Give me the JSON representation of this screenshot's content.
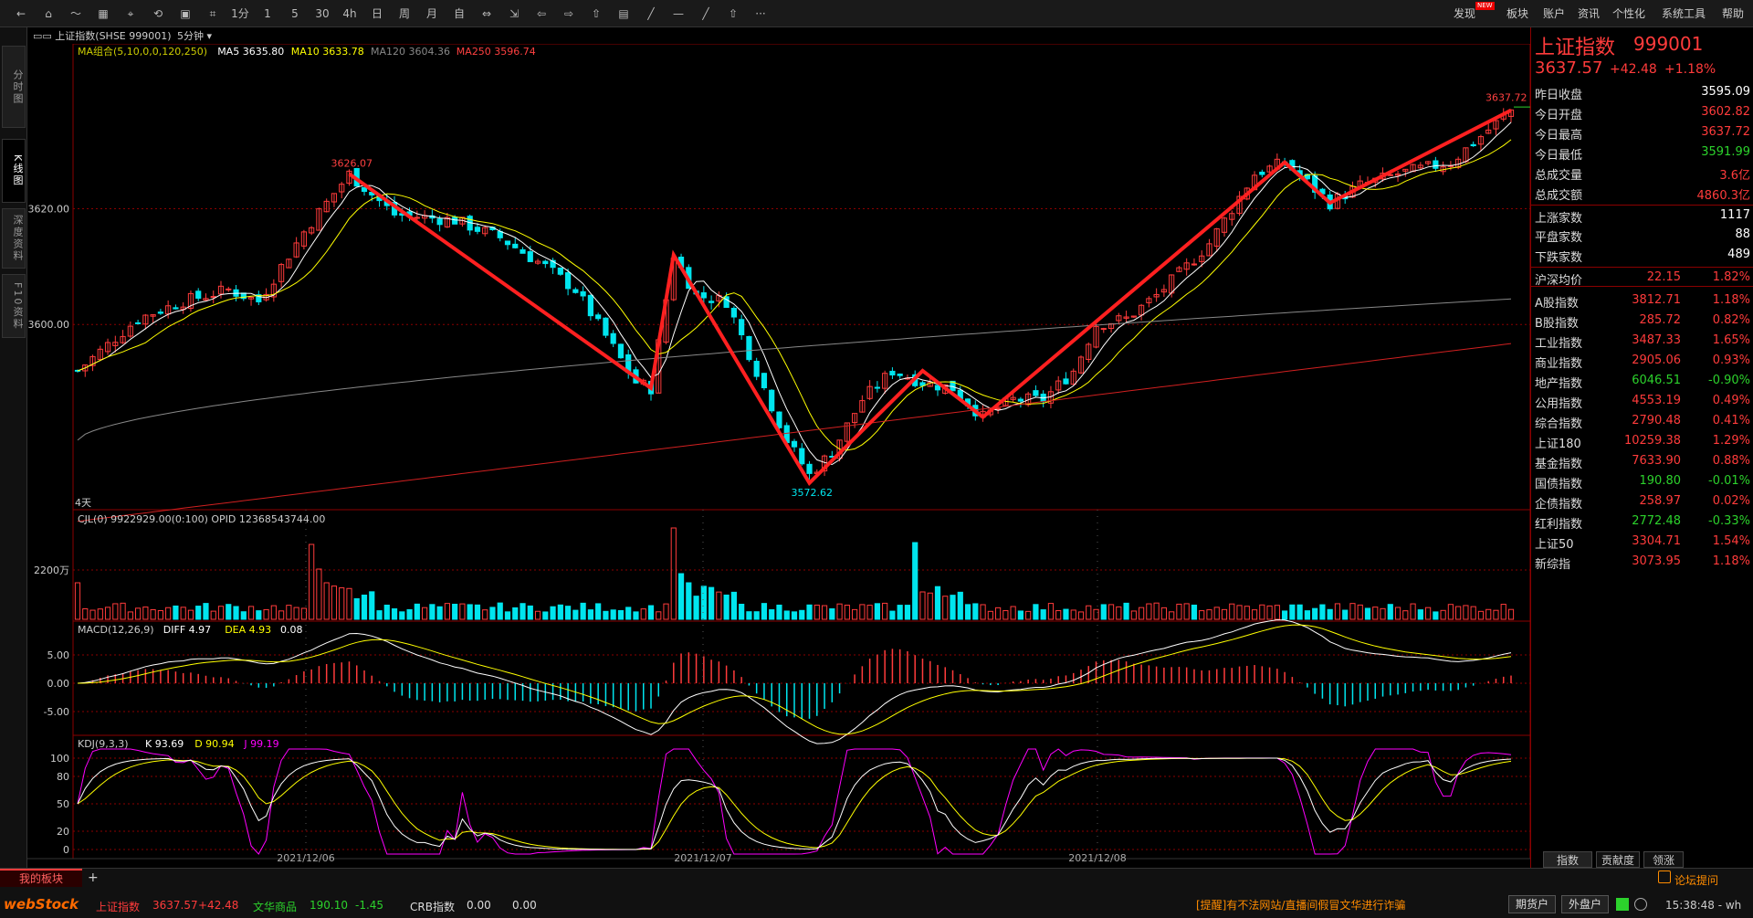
{
  "toolbar": {
    "items": [
      "←",
      "⌂",
      "〜",
      "▦",
      "⌖",
      "⟲",
      "▣",
      "⌗",
      "1分",
      "1",
      "5",
      "30",
      "4h",
      "日",
      "周",
      "月",
      "自",
      "⇔",
      "⇲",
      "⇦",
      "⇨",
      "⇧",
      "▤",
      "╱",
      "—",
      "╱",
      "⇧",
      "···"
    ],
    "menu": [
      "发现",
      "板块",
      "账户",
      "资讯",
      "个性化",
      "系统工具",
      "帮助"
    ],
    "new_badge": "NEW"
  },
  "sidetabs": [
    "分时图",
    "K线图",
    "深度资料",
    "F10资料"
  ],
  "chart": {
    "symbol_label": "上证指数(SHSE 999001)",
    "period": "5分钟",
    "ma_legend": [
      {
        "text": "MA组合(5,10,0,0,120,250)",
        "color": "#cccc00"
      },
      {
        "text": "MA5 3635.80",
        "color": "#ffffff"
      },
      {
        "text": "MA10 3633.78",
        "color": "#ffff00"
      },
      {
        "text": "MA120 3604.36",
        "color": "#888888"
      },
      {
        "text": "MA250 3596.74",
        "color": "#ff4040"
      }
    ],
    "price_ticks": [
      "3620.00",
      "3600.00"
    ],
    "annotations": {
      "high1": "3626.07",
      "low": "3572.62",
      "high2": "3637.72",
      "days": "4天"
    },
    "vol_legend": "CJL(0)  9922929.00(0:100)  OPID 12368543744.00",
    "vol_tick": "2200万",
    "macd_legend": [
      {
        "text": "MACD(12,26,9)",
        "color": "#ccc"
      },
      {
        "text": "DIFF 4.97",
        "color": "#ffffff"
      },
      {
        "text": "DEA 4.93",
        "color": "#ffff00"
      },
      {
        "text": "0.08",
        "color": "#ffffff"
      }
    ],
    "macd_ticks": [
      "5.00",
      "0.00",
      "-5.00"
    ],
    "kdj_legend": [
      {
        "text": "KDJ(9,3,3)",
        "color": "#ccc"
      },
      {
        "text": "K 93.69",
        "color": "#ffffff"
      },
      {
        "text": "D 90.94",
        "color": "#ffff00"
      },
      {
        "text": "J 99.19",
        "color": "#ff00ff"
      }
    ],
    "kdj_ticks": [
      "100",
      "80",
      "50",
      "20",
      "0"
    ],
    "dates": [
      "2021/12/06",
      "2021/12/07",
      "2021/12/08"
    ]
  },
  "quote": {
    "name": "上证指数",
    "code": "999001",
    "price": "3637.57",
    "change": "+42.48",
    "pct": "+1.18%",
    "stats": [
      {
        "label": "昨日收盘",
        "value": "3595.09",
        "color": "white"
      },
      {
        "label": "今日开盘",
        "value": "3602.82",
        "color": "red"
      },
      {
        "label": "今日最高",
        "value": "3637.72",
        "color": "red"
      },
      {
        "label": "今日最低",
        "value": "3591.99",
        "color": "green"
      },
      {
        "label": "总成交量",
        "value": "3.6亿",
        "color": "red"
      },
      {
        "label": "总成交额",
        "value": "4860.3亿",
        "color": "red"
      },
      {
        "label": "上涨家数",
        "value": "1117",
        "color": "white"
      },
      {
        "label": "平盘家数",
        "value": "88",
        "color": "white"
      },
      {
        "label": "下跌家数",
        "value": "489",
        "color": "white"
      }
    ],
    "avg": {
      "label": "沪深均价",
      "v1": "22.15",
      "v2": "1.82%"
    },
    "indices": [
      {
        "label": "A股指数",
        "v1": "3812.71",
        "v2": "1.18%",
        "c": "red"
      },
      {
        "label": "B股指数",
        "v1": "285.72",
        "v2": "0.82%",
        "c": "red"
      },
      {
        "label": "工业指数",
        "v1": "3487.33",
        "v2": "1.65%",
        "c": "red"
      },
      {
        "label": "商业指数",
        "v1": "2905.06",
        "v2": "0.93%",
        "c": "red"
      },
      {
        "label": "地产指数",
        "v1": "6046.51",
        "v2": "-0.90%",
        "c": "green"
      },
      {
        "label": "公用指数",
        "v1": "4553.19",
        "v2": "0.49%",
        "c": "red"
      },
      {
        "label": "综合指数",
        "v1": "2790.48",
        "v2": "0.41%",
        "c": "red"
      },
      {
        "label": "上证180",
        "v1": "10259.38",
        "v2": "1.29%",
        "c": "red"
      },
      {
        "label": "基金指数",
        "v1": "7633.90",
        "v2": "0.88%",
        "c": "red"
      },
      {
        "label": "国债指数",
        "v1": "190.80",
        "v2": "-0.01%",
        "c": "green"
      },
      {
        "label": "企债指数",
        "v1": "258.97",
        "v2": "0.02%",
        "c": "red"
      },
      {
        "label": "红利指数",
        "v1": "2772.48",
        "v2": "-0.33%",
        "c": "green"
      },
      {
        "label": "上证50",
        "v1": "3304.71",
        "v2": "1.54%",
        "c": "red"
      },
      {
        "label": "新综指",
        "v1": "3073.95",
        "v2": "1.18%",
        "c": "red"
      }
    ],
    "tabs": [
      "指数",
      "贡献度",
      "领涨"
    ]
  },
  "bottom": {
    "my_board": "我的板块",
    "add": "+",
    "logo": "webStock",
    "tickers": [
      {
        "name": "上证指数",
        "v": "3637.57",
        "c": "+42.48",
        "col": "red"
      },
      {
        "name": "文华商品",
        "v": "190.10",
        "c": "-1.45",
        "col": "green"
      },
      {
        "name": "CRB指数",
        "v": "0.00",
        "c": "0.00",
        "col": "white"
      }
    ],
    "notice": "[提醒]有不法网站/直播间假冒文华进行诈骗",
    "forum": "论坛提问",
    "btn1": "期货户",
    "btn2": "外盘户",
    "time": "15:38:48 - wh"
  }
}
